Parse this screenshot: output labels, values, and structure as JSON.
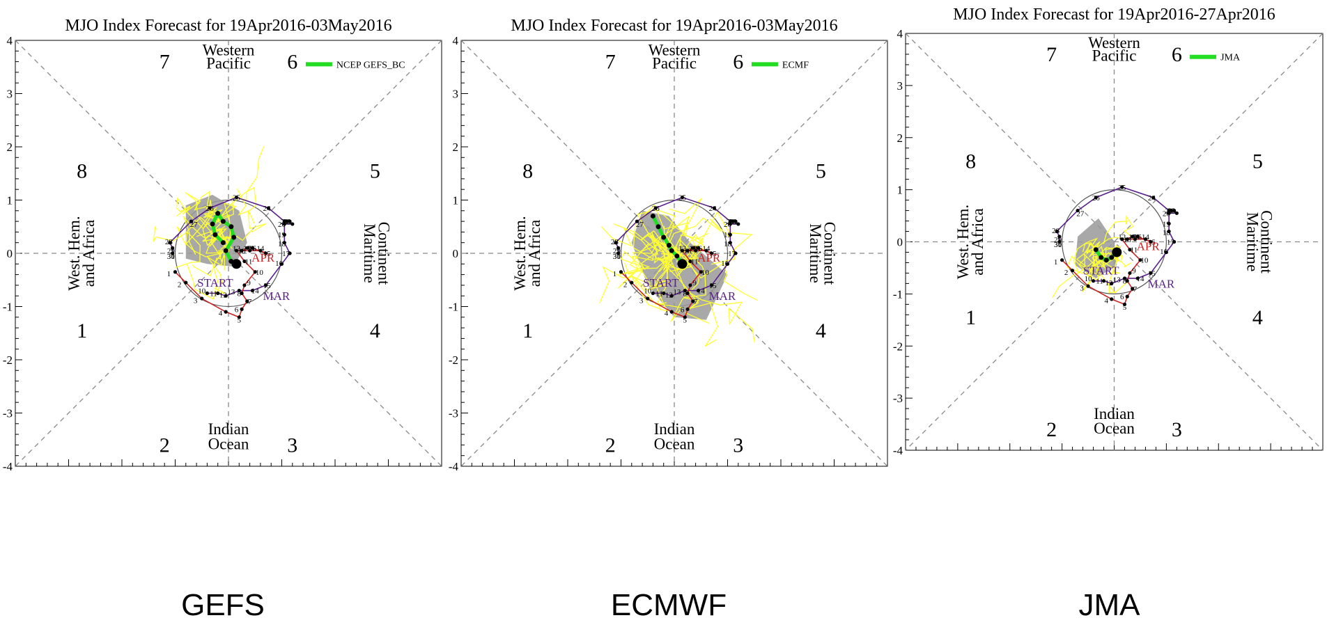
{
  "chart_data": [
    {
      "type": "scatter",
      "title": "MJO Index Forecast for 19Apr2016-03May2016",
      "caption": "GEFS",
      "legend": "NCEP GEFS_BC",
      "xlim": [
        -4,
        4
      ],
      "ylim": [
        -4,
        4
      ],
      "yticks": [
        "-4",
        "-3",
        "-2",
        "-1",
        "0",
        "1",
        "2",
        "3",
        "4"
      ],
      "phase_numbers": [
        "1",
        "2",
        "3",
        "4",
        "5",
        "6",
        "7",
        "8"
      ],
      "regions": {
        "top": [
          "Western",
          "Pacific"
        ],
        "bottom": [
          "Indian",
          "Ocean"
        ],
        "left": [
          "West. Hem.",
          "and Africa"
        ],
        "right": [
          "Maritime",
          "Continent"
        ]
      },
      "month_labels": {
        "start": "START",
        "mar": "MAR",
        "apr": "APR"
      },
      "forecast_mean": [
        [
          0.15,
          -0.2
        ],
        [
          0.05,
          -0.15
        ],
        [
          -0.05,
          0.05
        ],
        [
          0.1,
          0.3
        ],
        [
          0.05,
          0.5
        ],
        [
          -0.1,
          0.6
        ],
        [
          -0.2,
          0.75
        ],
        [
          -0.3,
          0.55
        ],
        [
          -0.25,
          0.35
        ],
        [
          -0.1,
          0.2
        ]
      ],
      "spread": [
        [
          -0.8,
          0.9
        ],
        [
          -0.3,
          1.1
        ],
        [
          0.2,
          0.8
        ],
        [
          0.35,
          0.2
        ],
        [
          0.1,
          -0.25
        ],
        [
          -0.4,
          -0.2
        ],
        [
          -0.8,
          -0.1
        ]
      ],
      "ensemble_seed": 7,
      "ensemble_count": 18,
      "ensemble_center": [
        -0.15,
        0.45
      ],
      "ensemble_radius": 0.7
    },
    {
      "type": "scatter",
      "title": "MJO Index Forecast for 19Apr2016-03May2016",
      "caption": "ECMWF",
      "legend": "ECMF",
      "xlim": [
        -4,
        4
      ],
      "ylim": [
        -4,
        4
      ],
      "yticks": [
        "-4",
        "-3",
        "-2",
        "-1",
        "0",
        "1",
        "2",
        "3",
        "4"
      ],
      "phase_numbers": [
        "1",
        "2",
        "3",
        "4",
        "5",
        "6",
        "7",
        "8"
      ],
      "regions": {
        "top": [
          "Western",
          "Pacific"
        ],
        "bottom": [
          "Indian",
          "Ocean"
        ],
        "left": [
          "West. Hem.",
          "and Africa"
        ],
        "right": [
          "Maritime",
          "Continent"
        ]
      },
      "month_labels": {
        "start": "START",
        "mar": "MAR",
        "apr": "APR"
      },
      "forecast_mean": [
        [
          0.15,
          -0.2
        ],
        [
          0.05,
          -0.05
        ],
        [
          -0.05,
          0.05
        ],
        [
          -0.1,
          0.15
        ],
        [
          -0.2,
          0.3
        ],
        [
          -0.3,
          0.5
        ],
        [
          -0.4,
          0.7
        ]
      ],
      "spread": [
        [
          -0.6,
          0.8
        ],
        [
          -0.1,
          0.7
        ],
        [
          0.3,
          0.2
        ],
        [
          1.0,
          -0.4
        ],
        [
          0.6,
          -1.25
        ],
        [
          0.0,
          -1.2
        ],
        [
          -0.5,
          -0.6
        ],
        [
          -0.8,
          0.2
        ]
      ],
      "ensemble_seed": 13,
      "ensemble_count": 24,
      "ensemble_center": [
        0.0,
        -0.15
      ],
      "ensemble_radius": 0.9
    },
    {
      "type": "scatter",
      "title": "MJO Index Forecast for 19Apr2016-27Apr2016",
      "caption": "JMA",
      "legend": "JMA",
      "xlim": [
        -4,
        4
      ],
      "ylim": [
        -4,
        4
      ],
      "yticks": [
        "-4",
        "-3",
        "-2",
        "-1",
        "0",
        "1",
        "2",
        "3",
        "4"
      ],
      "phase_numbers": [
        "1",
        "2",
        "3",
        "4",
        "5",
        "6",
        "7",
        "8"
      ],
      "regions": {
        "top": [
          "Western",
          "Pacific"
        ],
        "bottom": [
          "Indian",
          "Ocean"
        ],
        "left": [
          "West. Hem.",
          "and Africa"
        ],
        "right": [
          "Maritime",
          "Continent"
        ]
      },
      "month_labels": {
        "start": "START",
        "mar": "MAR",
        "apr": "APR"
      },
      "forecast_mean": [
        [
          0.05,
          -0.2
        ],
        [
          -0.05,
          -0.3
        ],
        [
          -0.15,
          -0.35
        ],
        [
          -0.25,
          -0.3
        ],
        [
          -0.35,
          -0.15
        ]
      ],
      "spread": [
        [
          -0.7,
          0.1
        ],
        [
          -0.3,
          0.45
        ],
        [
          0.0,
          0.0
        ],
        [
          0.05,
          -0.45
        ],
        [
          -0.35,
          -0.7
        ],
        [
          -0.75,
          -0.45
        ]
      ],
      "ensemble_seed": 21,
      "ensemble_count": 14,
      "ensemble_center": [
        -0.35,
        -0.2
      ],
      "ensemble_radius": 0.55
    }
  ],
  "observed": {
    "mar_days": [
      "10",
      "11",
      "12",
      "13",
      "14",
      "15",
      "16",
      "17",
      "18",
      "19",
      "20",
      "21",
      "22",
      "23",
      "24",
      "25",
      "26",
      "27",
      "28",
      "29",
      "30",
      "31"
    ],
    "mar_points": [
      [
        -0.4,
        -0.75
      ],
      [
        -0.2,
        -0.75
      ],
      [
        -0.05,
        -0.8
      ],
      [
        0.2,
        -0.7
      ],
      [
        0.45,
        -0.7
      ],
      [
        0.7,
        -0.6
      ],
      [
        1.0,
        -0.2
      ],
      [
        1.15,
        0.0
      ],
      [
        1.05,
        0.2
      ],
      [
        1.05,
        0.35
      ],
      [
        1.05,
        0.55
      ],
      [
        1.2,
        0.55
      ],
      [
        1.15,
        0.6
      ],
      [
        1.1,
        0.6
      ],
      [
        1.05,
        0.6
      ],
      [
        0.75,
        0.85
      ],
      [
        0.15,
        1.05
      ],
      [
        -0.35,
        0.85
      ],
      [
        -0.7,
        0.6
      ],
      [
        -1.1,
        0.2
      ],
      [
        -1.05,
        0.1
      ],
      [
        -1.05,
        0.0
      ]
    ],
    "mar_labels": [
      [
        -0.5,
        -0.7
      ],
      [
        -0.28,
        -0.75
      ],
      [
        -0.1,
        -0.78
      ],
      [
        0.05,
        -0.72
      ],
      [
        0.5,
        -0.7
      ],
      [
        0.72,
        -0.6
      ],
      [
        0.95,
        -0.18
      ],
      [
        1.08,
        0.0
      ],
      [
        1.0,
        0.18
      ],
      [
        1.0,
        0.35
      ],
      [
        1.0,
        0.55
      ],
      [
        1.05,
        0.6
      ],
      [
        1.1,
        0.6
      ],
      [
        1.1,
        0.6
      ],
      [
        0.72,
        0.85
      ],
      [
        0.15,
        1.05
      ],
      [
        -0.35,
        0.85
      ],
      [
        -0.65,
        0.55
      ],
      [
        -1.12,
        0.22
      ],
      [
        -1.08,
        0.05
      ],
      [
        -1.08,
        -0.05
      ],
      [
        -1.08,
        -0.05
      ]
    ],
    "apr_days": [
      "1",
      "2",
      "3",
      "4",
      "5",
      "6",
      "7",
      "8",
      "9",
      "10",
      "11",
      "12",
      "13",
      "14",
      "15",
      "16",
      "17",
      "18"
    ],
    "apr_points": [
      [
        -1.0,
        -0.35
      ],
      [
        -0.8,
        -0.55
      ],
      [
        -0.5,
        -0.85
      ],
      [
        -0.05,
        -1.1
      ],
      [
        0.2,
        -1.2
      ],
      [
        0.25,
        -1.05
      ],
      [
        0.35,
        -0.9
      ],
      [
        0.25,
        -0.75
      ],
      [
        0.3,
        -0.6
      ],
      [
        0.5,
        -0.35
      ],
      [
        0.3,
        -0.15
      ],
      [
        0.15,
        0.05
      ],
      [
        0.4,
        0.05
      ],
      [
        0.6,
        0.05
      ],
      [
        0.7,
        0.0
      ],
      [
        0.45,
        0.1
      ],
      [
        0.35,
        0.1
      ],
      [
        0.25,
        0.05
      ]
    ],
    "apr_labels": [
      [
        -1.12,
        -0.38
      ],
      [
        -0.92,
        -0.58
      ],
      [
        -0.62,
        -0.88
      ],
      [
        -0.15,
        -1.12
      ],
      [
        0.2,
        -1.25
      ],
      [
        0.15,
        -1.05
      ],
      [
        0.4,
        -0.9
      ],
      [
        0.2,
        -0.75
      ],
      [
        0.38,
        -0.55
      ],
      [
        0.58,
        -0.35
      ],
      [
        0.38,
        -0.15
      ],
      [
        0.15,
        0.1
      ],
      [
        0.42,
        0.1
      ],
      [
        0.6,
        0.1
      ],
      [
        0.72,
        0.0
      ],
      [
        0.45,
        0.1
      ],
      [
        0.35,
        0.1
      ],
      [
        0.25,
        0.05
      ]
    ]
  },
  "colors": {
    "ensemble": "#ffff33",
    "mean": "#22dd22",
    "spread": "#999999",
    "mar": "#5a1e8c",
    "apr": "#cc2222",
    "axis": "#000000",
    "dash": "#888888"
  }
}
